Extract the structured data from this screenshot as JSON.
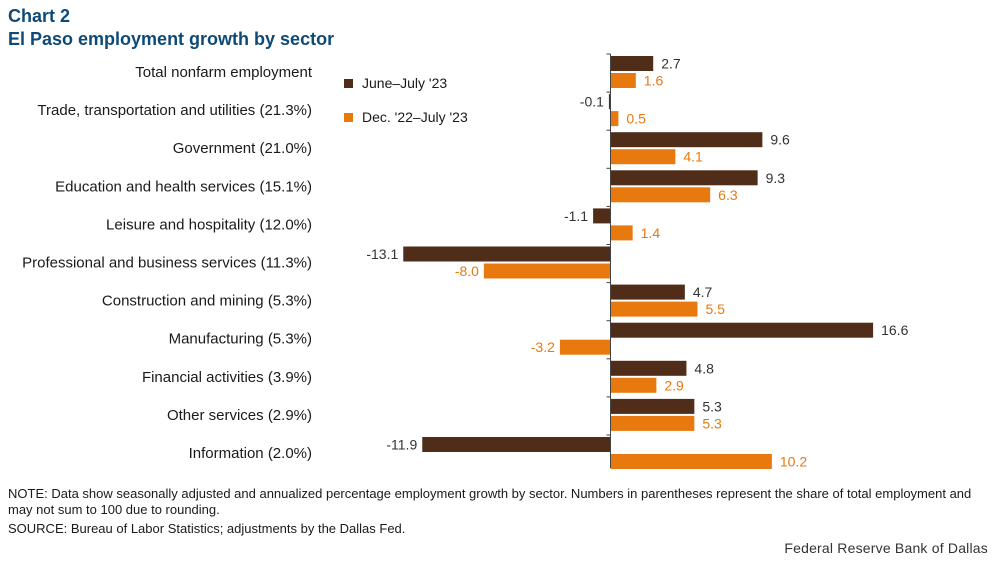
{
  "header": {
    "chart_number": "Chart 2",
    "title": "El Paso employment growth by sector"
  },
  "chart_data": {
    "type": "bar",
    "orientation": "horizontal",
    "title": "El Paso employment growth by sector",
    "categories": [
      "Total nonfarm employment",
      "Trade, transportation and utilities (21.3%)",
      "Government (21.0%)",
      "Education and health services (15.1%)",
      "Leisure and hospitality (12.0%)",
      "Professional and business services (11.3%)",
      "Construction and mining (5.3%)",
      "Manufacturing (5.3%)",
      "Financial activities (3.9%)",
      "Other services (2.9%)",
      "Information (2.0%)"
    ],
    "series": [
      {
        "name": "June–July '23",
        "color": "#4f2d18",
        "values": [
          2.7,
          -0.1,
          9.6,
          9.3,
          -1.1,
          -13.1,
          4.7,
          16.6,
          4.8,
          5.3,
          -11.9
        ]
      },
      {
        "name": "Dec. '22–July '23",
        "color": "#e8790f",
        "values": [
          1.6,
          0.5,
          4.1,
          6.3,
          1.4,
          -8.0,
          5.5,
          -3.2,
          2.9,
          5.3,
          10.2
        ]
      }
    ],
    "value_labels": [
      [
        "2.7",
        "-0.1",
        "9.6",
        "9.3",
        "-1.1",
        "-13.1",
        "4.7",
        "16.6",
        "4.8",
        "5.3",
        "-11.9"
      ],
      [
        "1.6",
        "0.5",
        "4.1",
        "6.3",
        "1.4",
        "-8.0",
        "5.5",
        "-3.2",
        "2.9",
        "5.3",
        "10.2"
      ]
    ],
    "xlim": [
      -13.1,
      16.6
    ],
    "xlabel": "",
    "ylabel": "",
    "grid": false,
    "legend_position": "top-center"
  },
  "notes": {
    "note": "NOTE: Data show seasonally adjusted and annualized percentage employment growth by sector. Numbers in parentheses represent the share of total employment and may not sum to 100 due to rounding.",
    "source": "SOURCE: Bureau of Labor Statistics; adjustments by the Dallas Fed."
  },
  "credit": "Federal Reserve Bank of Dallas"
}
